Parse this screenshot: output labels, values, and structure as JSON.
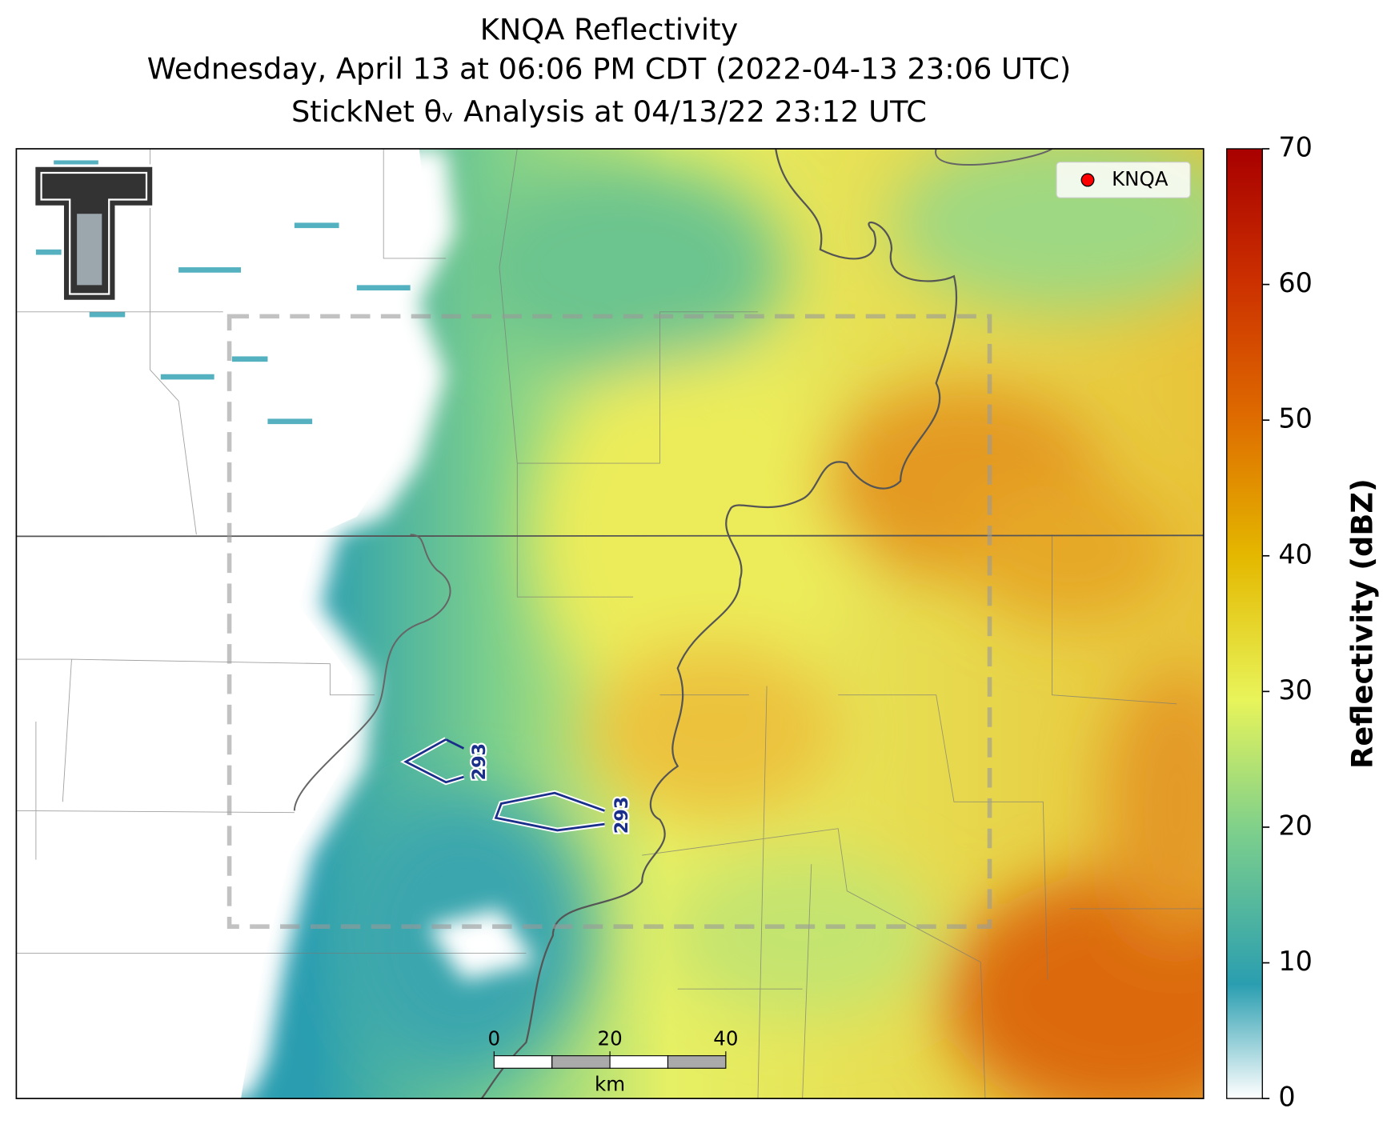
{
  "title": {
    "line1": "KNQA Reflectivity",
    "line2": "Wednesday, April 13 at 06:06 PM CDT (2022-04-13 23:06 UTC)",
    "line3": "StickNet θᵥ Analysis at 04/13/22 23:12 UTC"
  },
  "legend": {
    "label": "KNQA",
    "color": "#ff0000"
  },
  "contours": [
    {
      "label": "293"
    },
    {
      "label": "293"
    }
  ],
  "scalebar": {
    "ticks": [
      0,
      20,
      40
    ],
    "unit": "km"
  },
  "colorbar": {
    "label": "Reflectivity (dBZ)",
    "lim": [
      0,
      70
    ],
    "ticks": [
      0,
      10,
      20,
      30,
      40,
      50,
      60,
      70
    ]
  }
}
